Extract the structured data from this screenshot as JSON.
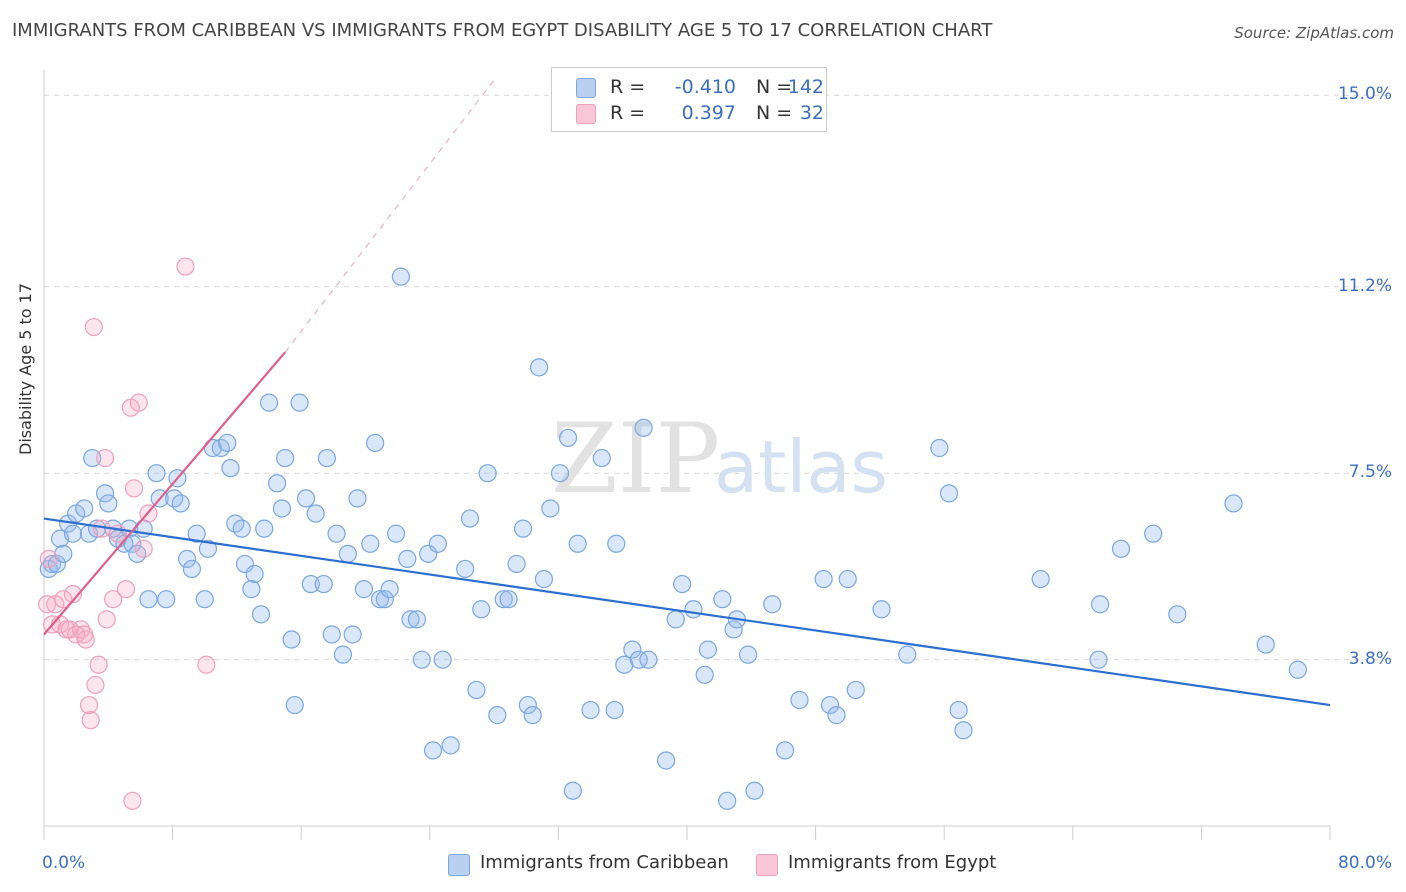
{
  "title": "IMMIGRANTS FROM CARIBBEAN VS IMMIGRANTS FROM EGYPT DISABILITY AGE 5 TO 17 CORRELATION CHART",
  "source": "Source: ZipAtlas.com",
  "watermark": {
    "zip": "ZIP",
    "atlas": "atlas"
  },
  "colors": {
    "blue": "#7aa7e0",
    "blue_line": "#2a6fd1",
    "pink": "#f0a0bc",
    "pink_line": "#e0608a",
    "grid": "#d8d8d8",
    "tick_text": "#3b6fc4"
  },
  "legend": {
    "rows": [
      {
        "r_label": "R =",
        "r_value": "-0.410",
        "n_label": "N =",
        "n_value": "142"
      },
      {
        "r_label": "R =",
        "r_value": "0.397",
        "n_label": "N =",
        "n_value": "32"
      }
    ]
  },
  "bottom_legend": {
    "series1": "Immigrants from Caribbean",
    "series2": "Immigrants from Egypt"
  },
  "chart_data": {
    "type": "scatter",
    "title": "IMMIGRANTS FROM CARIBBEAN VS IMMIGRANTS FROM EGYPT DISABILITY AGE 5 TO 17 CORRELATION CHART",
    "xlabel": "",
    "ylabel": "Disability Age 5 to 17",
    "xlim": [
      0,
      80
    ],
    "ylim": [
      0.5,
      15.5
    ],
    "x_tick_labels": [
      "0.0%",
      "80.0%"
    ],
    "y_ticks": [
      3.8,
      7.5,
      11.2,
      15.0
    ],
    "y_tick_labels": [
      "3.8%",
      "7.5%",
      "11.2%",
      "15.0%"
    ],
    "grid": true,
    "legend_position": "top-center",
    "series": [
      {
        "name": "Immigrants from Caribbean",
        "color": "#7aa7e0",
        "trend": {
          "x": [
            0,
            80
          ],
          "y": [
            6.6,
            2.9
          ]
        },
        "points": [
          [
            0.3,
            5.6
          ],
          [
            0.5,
            5.7
          ],
          [
            0.8,
            5.7
          ],
          [
            1.0,
            6.2
          ],
          [
            1.2,
            5.9
          ],
          [
            1.5,
            6.5
          ],
          [
            1.8,
            6.3
          ],
          [
            2.0,
            6.7
          ],
          [
            2.5,
            6.8
          ],
          [
            2.8,
            6.3
          ],
          [
            3.0,
            7.8
          ],
          [
            3.3,
            6.4
          ],
          [
            3.8,
            7.1
          ],
          [
            4.0,
            6.9
          ],
          [
            4.3,
            6.4
          ],
          [
            4.6,
            6.2
          ],
          [
            5.0,
            6.1
          ],
          [
            5.3,
            6.4
          ],
          [
            5.5,
            6.1
          ],
          [
            5.8,
            5.9
          ],
          [
            6.2,
            6.4
          ],
          [
            6.5,
            5.0
          ],
          [
            7.0,
            7.5
          ],
          [
            7.2,
            7.0
          ],
          [
            7.6,
            5.0
          ],
          [
            8.1,
            7.0
          ],
          [
            8.3,
            7.4
          ],
          [
            8.5,
            6.9
          ],
          [
            8.9,
            5.8
          ],
          [
            9.2,
            5.6
          ],
          [
            9.5,
            6.3
          ],
          [
            10.0,
            5.0
          ],
          [
            10.2,
            6.0
          ],
          [
            10.5,
            8.0
          ],
          [
            11.0,
            8.0
          ],
          [
            11.4,
            8.1
          ],
          [
            11.6,
            7.6
          ],
          [
            11.9,
            6.5
          ],
          [
            12.3,
            6.4
          ],
          [
            12.5,
            5.7
          ],
          [
            12.9,
            5.2
          ],
          [
            13.1,
            5.5
          ],
          [
            13.5,
            4.7
          ],
          [
            13.7,
            6.4
          ],
          [
            14.0,
            8.9
          ],
          [
            14.5,
            7.3
          ],
          [
            14.8,
            6.8
          ],
          [
            15.0,
            7.8
          ],
          [
            15.4,
            4.2
          ],
          [
            15.6,
            2.9
          ],
          [
            15.9,
            8.9
          ],
          [
            16.3,
            7.0
          ],
          [
            16.6,
            5.3
          ],
          [
            16.9,
            6.7
          ],
          [
            17.4,
            5.3
          ],
          [
            17.6,
            7.8
          ],
          [
            17.9,
            4.3
          ],
          [
            18.2,
            6.3
          ],
          [
            18.6,
            3.9
          ],
          [
            18.9,
            5.9
          ],
          [
            19.2,
            4.3
          ],
          [
            19.5,
            7.0
          ],
          [
            19.9,
            5.2
          ],
          [
            20.3,
            6.1
          ],
          [
            20.6,
            8.1
          ],
          [
            20.9,
            5.0
          ],
          [
            21.2,
            5.0
          ],
          [
            21.5,
            5.2
          ],
          [
            21.9,
            6.3
          ],
          [
            22.2,
            11.4
          ],
          [
            22.6,
            5.8
          ],
          [
            22.8,
            4.6
          ],
          [
            23.2,
            4.6
          ],
          [
            23.5,
            3.8
          ],
          [
            23.9,
            5.9
          ],
          [
            24.2,
            2.0
          ],
          [
            24.5,
            6.1
          ],
          [
            24.8,
            3.8
          ],
          [
            25.3,
            2.1
          ],
          [
            26.2,
            5.6
          ],
          [
            26.5,
            6.6
          ],
          [
            26.9,
            3.2
          ],
          [
            27.2,
            4.8
          ],
          [
            27.6,
            7.5
          ],
          [
            28.2,
            2.7
          ],
          [
            28.6,
            5.0
          ],
          [
            28.9,
            5.0
          ],
          [
            29.4,
            5.7
          ],
          [
            29.8,
            6.4
          ],
          [
            30.1,
            2.9
          ],
          [
            30.4,
            2.7
          ],
          [
            30.8,
            9.6
          ],
          [
            31.1,
            5.4
          ],
          [
            31.5,
            6.8
          ],
          [
            32.1,
            7.5
          ],
          [
            32.6,
            8.2
          ],
          [
            32.9,
            1.2
          ],
          [
            33.2,
            6.1
          ],
          [
            34.0,
            2.8
          ],
          [
            34.7,
            7.8
          ],
          [
            35.5,
            2.8
          ],
          [
            35.6,
            6.1
          ],
          [
            36.1,
            3.7
          ],
          [
            36.6,
            4.0
          ],
          [
            37.0,
            3.8
          ],
          [
            37.3,
            8.4
          ],
          [
            37.6,
            3.8
          ],
          [
            38.7,
            1.8
          ],
          [
            39.3,
            4.6
          ],
          [
            39.7,
            5.3
          ],
          [
            40.4,
            4.8
          ],
          [
            41.1,
            3.5
          ],
          [
            41.3,
            4.0
          ],
          [
            42.2,
            5.0
          ],
          [
            42.5,
            1.0
          ],
          [
            42.9,
            4.4
          ],
          [
            43.1,
            4.6
          ],
          [
            43.8,
            3.9
          ],
          [
            44.2,
            1.2
          ],
          [
            45.3,
            4.9
          ],
          [
            46.1,
            2.0
          ],
          [
            47.0,
            3.0
          ],
          [
            48.5,
            5.4
          ],
          [
            48.9,
            2.9
          ],
          [
            49.3,
            2.7
          ],
          [
            50.0,
            5.4
          ],
          [
            50.5,
            3.2
          ],
          [
            52.1,
            4.8
          ],
          [
            53.7,
            3.9
          ],
          [
            55.7,
            8.0
          ],
          [
            56.3,
            7.1
          ],
          [
            56.9,
            2.8
          ],
          [
            57.2,
            2.4
          ],
          [
            62.0,
            5.4
          ],
          [
            65.6,
            3.8
          ],
          [
            65.7,
            4.9
          ],
          [
            67.0,
            6.0
          ],
          [
            69.0,
            6.3
          ],
          [
            70.5,
            4.7
          ],
          [
            74.0,
            6.9
          ],
          [
            76.0,
            4.1
          ],
          [
            78.0,
            3.6
          ]
        ]
      },
      {
        "name": "Immigrants from Egypt",
        "color": "#f0a0bc",
        "trend": {
          "x": [
            0,
            15
          ],
          "y": [
            4.3,
            9.9
          ]
        },
        "trend_extended": {
          "x": [
            15,
            28
          ],
          "y": [
            9.9,
            15.3
          ]
        },
        "points": [
          [
            0.2,
            4.9
          ],
          [
            0.3,
            5.8
          ],
          [
            0.5,
            4.5
          ],
          [
            0.7,
            4.9
          ],
          [
            1.0,
            4.5
          ],
          [
            1.2,
            5.0
          ],
          [
            1.4,
            4.4
          ],
          [
            1.6,
            4.4
          ],
          [
            1.8,
            5.1
          ],
          [
            2.0,
            4.3
          ],
          [
            2.3,
            4.4
          ],
          [
            2.5,
            4.3
          ],
          [
            2.6,
            4.2
          ],
          [
            2.8,
            2.9
          ],
          [
            2.9,
            2.6
          ],
          [
            3.1,
            10.4
          ],
          [
            3.2,
            3.3
          ],
          [
            3.4,
            3.7
          ],
          [
            3.6,
            6.4
          ],
          [
            3.8,
            7.8
          ],
          [
            3.9,
            4.6
          ],
          [
            4.3,
            5.0
          ],
          [
            4.6,
            6.3
          ],
          [
            5.1,
            5.2
          ],
          [
            5.4,
            8.8
          ],
          [
            5.5,
            1.0
          ],
          [
            5.6,
            7.2
          ],
          [
            5.9,
            8.9
          ],
          [
            6.2,
            6.0
          ],
          [
            6.5,
            6.7
          ],
          [
            8.8,
            11.6
          ],
          [
            10.1,
            3.7
          ]
        ]
      }
    ]
  }
}
